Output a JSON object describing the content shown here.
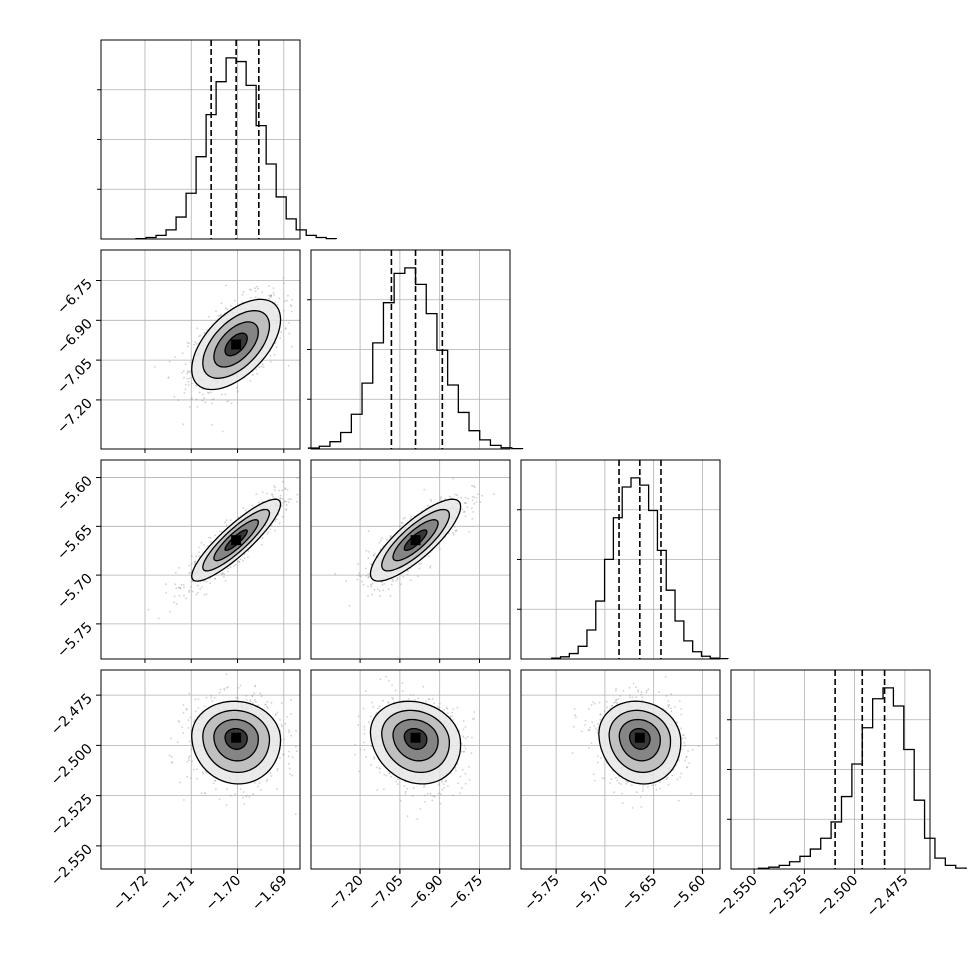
{
  "chart_data": {
    "type": "corner",
    "title": "",
    "parameters": [
      {
        "ticks": [
          "−1.72",
          "−1.71",
          "−1.70",
          "−1.69"
        ],
        "tick_values": [
          -1.72,
          -1.71,
          -1.7,
          -1.69
        ],
        "range": [
          -1.7295,
          -1.6865
        ],
        "quantiles": [
          -1.7057,
          -1.7003,
          -1.6954
        ]
      },
      {
        "ticks": [
          "−7.20",
          "−7.05",
          "−6.90",
          "−6.75"
        ],
        "tick_values": [
          -7.2,
          -7.05,
          -6.9,
          -6.75
        ],
        "range": [
          -7.385,
          -6.635
        ],
        "quantiles": [
          -7.082,
          -6.991,
          -6.89
        ]
      },
      {
        "ticks": [
          "−5.75",
          "−5.70",
          "−5.65",
          "−5.60"
        ],
        "tick_values": [
          -5.75,
          -5.7,
          -5.65,
          -5.6
        ],
        "range": [
          -5.786,
          -5.582
        ],
        "quantiles": [
          -5.6855,
          -5.6642,
          -5.6425
        ]
      },
      {
        "ticks": [
          "−2.550",
          "−2.525",
          "−2.500",
          "−2.475"
        ],
        "tick_values": [
          -2.55,
          -2.525,
          -2.5,
          -2.475
        ],
        "range": [
          -2.5615,
          -2.4625
        ],
        "quantiles": [
          -2.5097,
          -2.4962,
          -2.4851
        ]
      }
    ],
    "histograms": [
      [
        0.002,
        0.008,
        0.02,
        0.05,
        0.12,
        0.25,
        0.45,
        0.68,
        0.86,
        0.99,
        0.97,
        0.84,
        0.62,
        0.41,
        0.23,
        0.11,
        0.05,
        0.02,
        0.008,
        0.002
      ],
      [
        0.005,
        0.015,
        0.04,
        0.09,
        0.19,
        0.36,
        0.58,
        0.8,
        0.96,
        0.99,
        0.9,
        0.74,
        0.54,
        0.35,
        0.2,
        0.1,
        0.05,
        0.02,
        0.007,
        0.002
      ],
      [
        0.005,
        0.012,
        0.03,
        0.07,
        0.16,
        0.32,
        0.55,
        0.78,
        0.95,
        1.0,
        0.96,
        0.82,
        0.6,
        0.38,
        0.21,
        0.1,
        0.04,
        0.015,
        0.005,
        0.002
      ],
      [
        0.004,
        0.01,
        0.02,
        0.04,
        0.07,
        0.11,
        0.17,
        0.26,
        0.4,
        0.58,
        0.78,
        0.94,
        1.0,
        0.9,
        0.66,
        0.38,
        0.17,
        0.06,
        0.02,
        0.005
      ]
    ],
    "pairs": [
      {
        "i": 1,
        "j": 0,
        "center": [
          -1.7003,
          -6.991
        ],
        "sd": [
          0.0048,
          0.085
        ],
        "rho": 0.55,
        "tilt": 0.0
      },
      {
        "i": 2,
        "j": 0,
        "center": [
          -1.7003,
          -5.6642
        ],
        "sd": [
          0.0048,
          0.021
        ],
        "rho": 0.88,
        "tilt": 0.0
      },
      {
        "i": 2,
        "j": 1,
        "center": [
          -6.991,
          -5.6642
        ],
        "sd": [
          0.085,
          0.021
        ],
        "rho": 0.82,
        "tilt": 0.0
      },
      {
        "i": 3,
        "j": 0,
        "center": [
          -1.7003,
          -2.4962
        ],
        "sd": [
          0.0048,
          0.0115
        ],
        "rho": -0.05,
        "tilt": -0.35
      },
      {
        "i": 3,
        "j": 1,
        "center": [
          -6.991,
          -2.4962
        ],
        "sd": [
          0.085,
          0.0115
        ],
        "rho": -0.15,
        "tilt": -0.35
      },
      {
        "i": 3,
        "j": 2,
        "center": [
          -5.6642,
          -2.4962
        ],
        "sd": [
          0.021,
          0.0115
        ],
        "rho": -0.1,
        "tilt": -0.35
      }
    ],
    "contour_levels_sigma": [
      0.5,
      1.0,
      1.5,
      2.0
    ],
    "grid": true,
    "colors": {
      "line": "#000000",
      "grid": "#b0b0b0",
      "points": "#9a9a9a",
      "background": "#ffffff"
    }
  }
}
